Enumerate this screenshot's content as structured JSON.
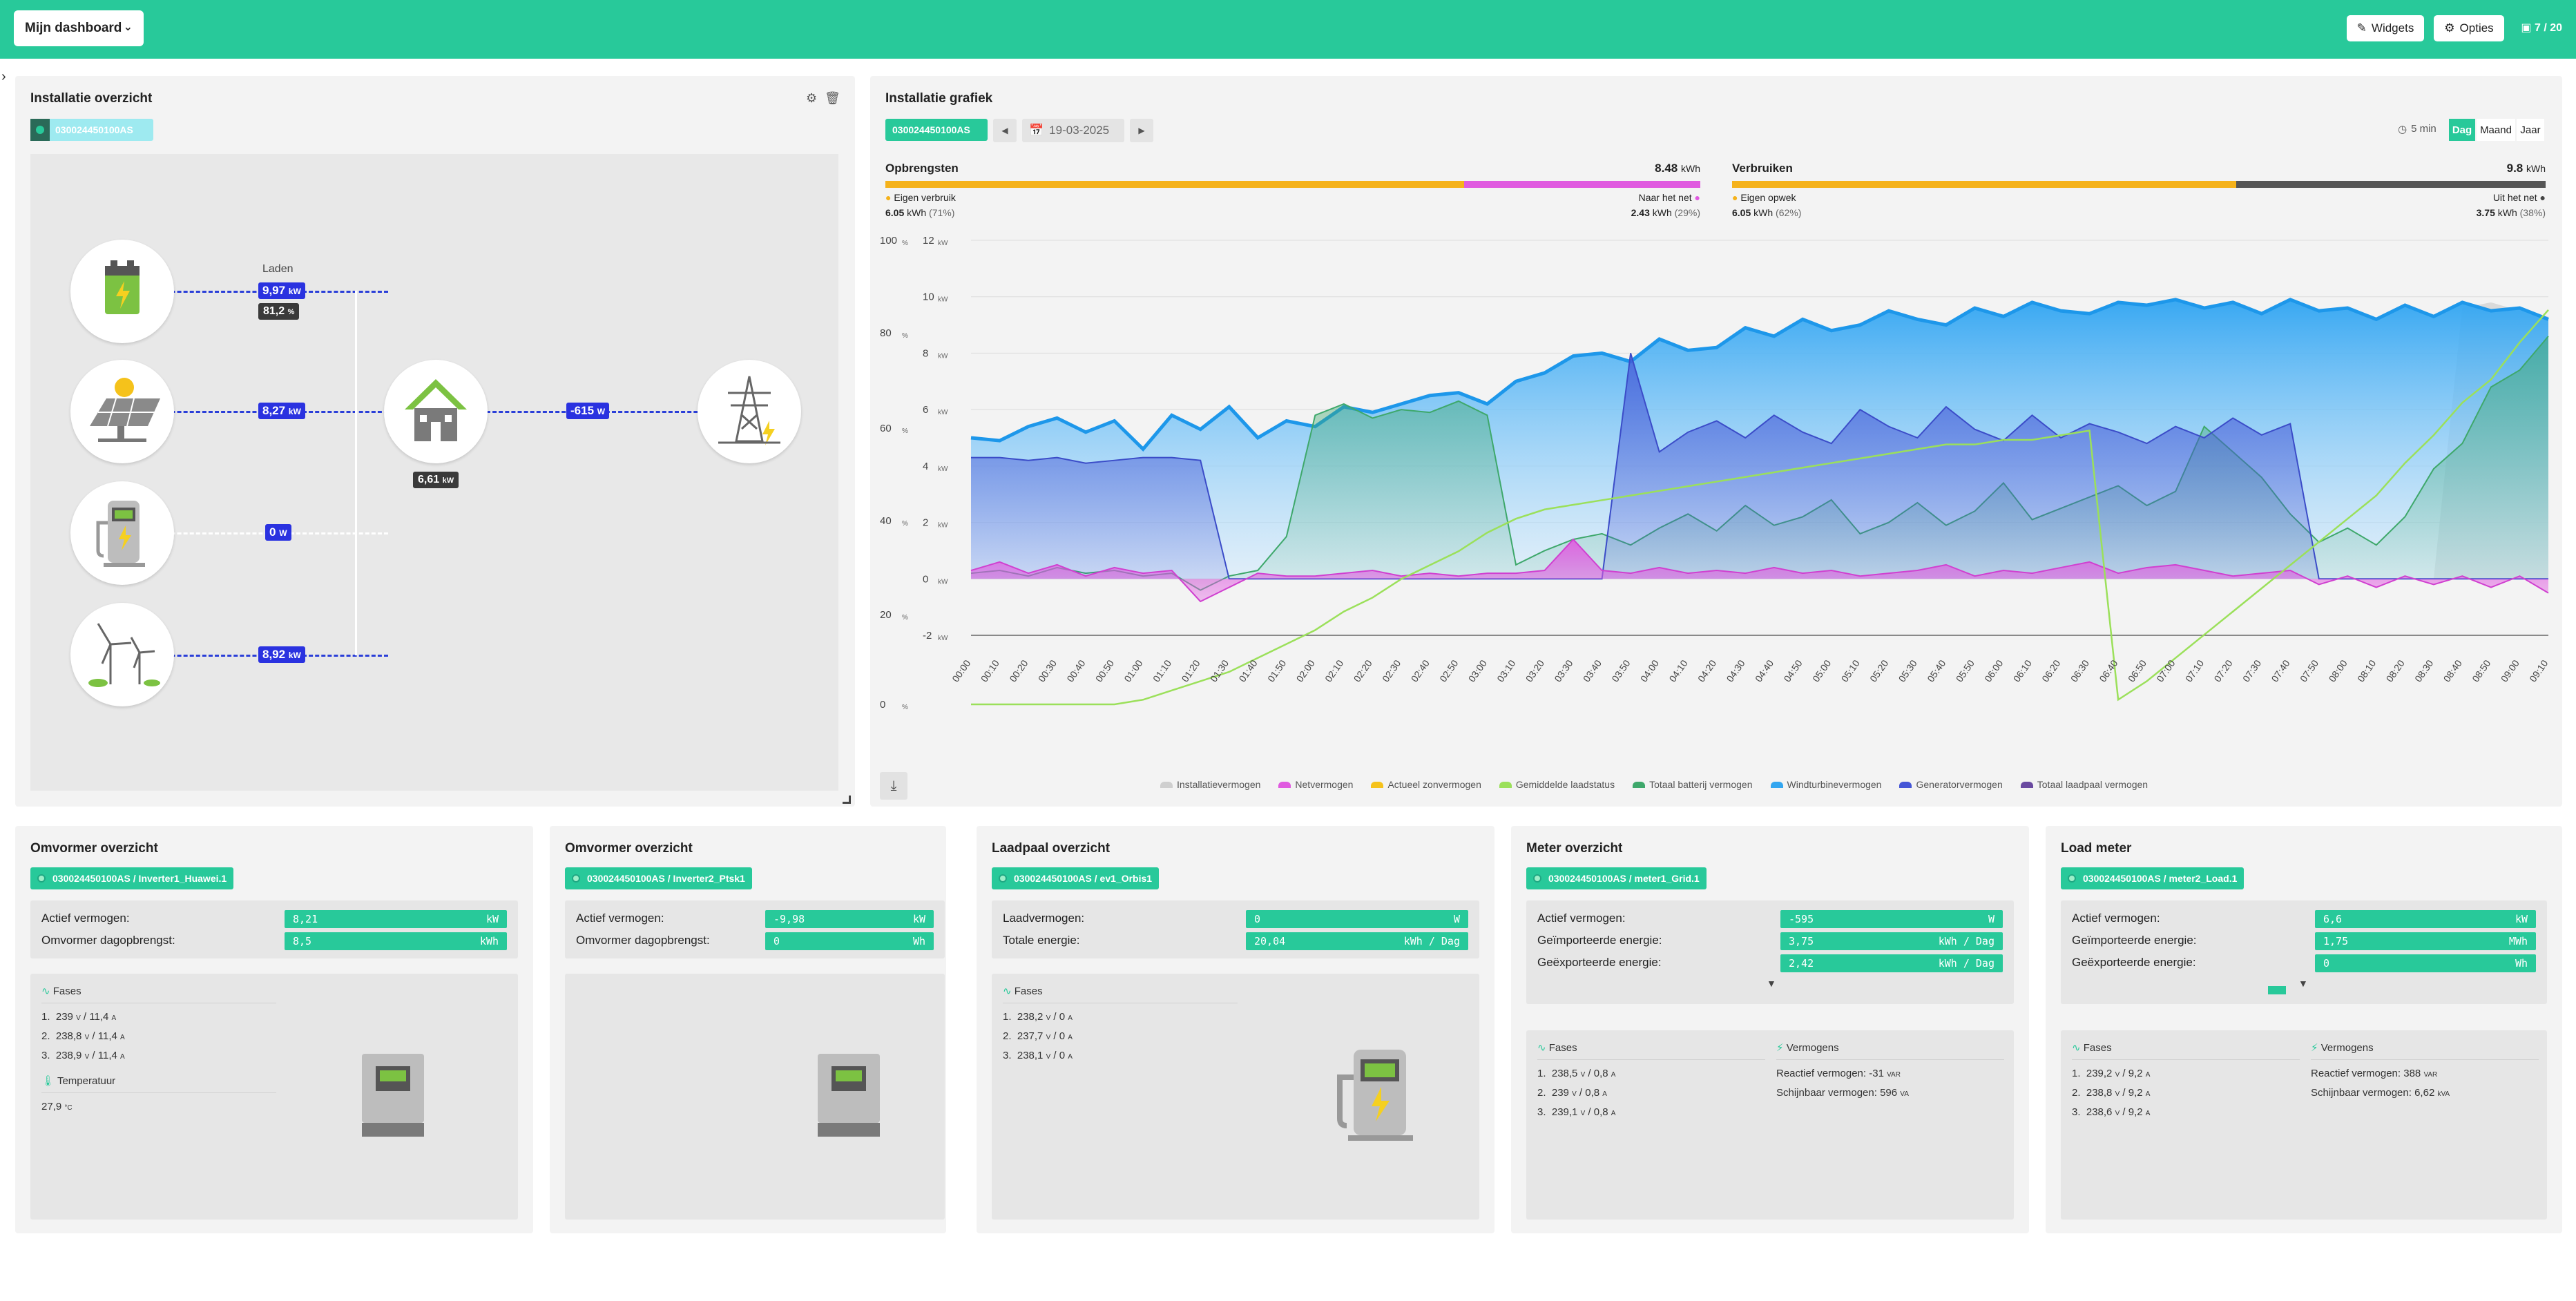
{
  "topbar": {
    "dashboard_label": "Mijn dashboard",
    "widgets_label": "Widgets",
    "options_label": "Opties",
    "count": "7 / 20"
  },
  "colors": {
    "accent": "#28c99a",
    "flow": "#2a32e0"
  },
  "installatie_overzicht": {
    "title": "Installatie overzicht",
    "device_id": "030024450100AS",
    "laden_label": "Laden",
    "battery_power": "9,97",
    "battery_power_unit": "kW",
    "battery_soc": "81,2",
    "battery_soc_unit": "%",
    "solar_power": "8,27",
    "solar_power_unit": "kW",
    "charger_power": "0",
    "charger_power_unit": "W",
    "wind_power": "8,92",
    "wind_power_unit": "kW",
    "house_power": "6,61",
    "house_power_unit": "kW",
    "grid_power": "-615",
    "grid_power_unit": "W"
  },
  "installatie_grafiek": {
    "title": "Installatie grafiek",
    "device_id": "030024450100AS",
    "date": "19-03-2025",
    "interval": "5 min",
    "periods": [
      "Dag",
      "Maand",
      "Jaar"
    ],
    "active_period": "Dag",
    "opbrengsten": {
      "label": "Opbrengsten",
      "total": "8.48",
      "total_unit": "kWh",
      "left_label": "Eigen verbruik",
      "left_value": "6.05",
      "left_unit": "kWh",
      "left_pct": "(71%)",
      "right_label": "Naar het net",
      "right_value": "2.43",
      "right_unit": "kWh",
      "right_pct": "(29%)",
      "fraction": 0.71
    },
    "verbruiken": {
      "label": "Verbruiken",
      "total": "9.8",
      "total_unit": "kWh",
      "left_label": "Eigen opwek",
      "left_value": "6.05",
      "left_unit": "kWh",
      "left_pct": "(62%)",
      "right_label": "Uit het net",
      "right_value": "3.75",
      "right_unit": "kWh",
      "right_pct": "(38%)",
      "fraction": 0.62
    }
  },
  "chart_data": {
    "type": "area",
    "y_left_unit": "%",
    "y_right_unit": "kW",
    "y_left_ticks": [
      "100",
      "80",
      "60",
      "40",
      "20",
      "0"
    ],
    "y_right_ticks": [
      "12",
      "10",
      "8",
      "6",
      "4",
      "2",
      "0",
      "-2"
    ],
    "ylim": [
      -2,
      12
    ],
    "x_ticks": [
      "00:00",
      "00:10",
      "00:20",
      "00:30",
      "00:40",
      "00:50",
      "01:00",
      "01:10",
      "01:20",
      "01:30",
      "01:40",
      "01:50",
      "02:00",
      "02:10",
      "02:20",
      "02:30",
      "02:40",
      "02:50",
      "03:00",
      "03:10",
      "03:20",
      "03:30",
      "03:40",
      "03:50",
      "04:00",
      "04:10",
      "04:20",
      "04:30",
      "04:40",
      "04:50",
      "05:00",
      "05:10",
      "05:20",
      "05:30",
      "05:40",
      "05:50",
      "06:00",
      "06:10",
      "06:20",
      "06:30",
      "06:40",
      "06:50",
      "07:00",
      "07:10",
      "07:20",
      "07:30",
      "07:40",
      "07:50",
      "08:00",
      "08:10",
      "08:20",
      "08:30",
      "08:40",
      "08:50",
      "09:00",
      "09:10"
    ],
    "legend": [
      "Installatievermogen",
      "Netvermogen",
      "Actueel zonvermogen",
      "Gemiddelde laadstatus",
      "Totaal batterij vermogen",
      "Windturbinevermogen",
      "Generatorvermogen",
      "Totaal laadpaal vermogen"
    ],
    "legend_colors": [
      "#cfcfcf",
      "#e05ae0",
      "#f5c21b",
      "#9be05a",
      "#3ea86b",
      "#33a6f0",
      "#4455d6",
      "#6a4aa0"
    ],
    "series": [
      {
        "name": "Windturbinevermogen",
        "values": [
          5.0,
          4.9,
          5.4,
          5.7,
          5.2,
          5.6,
          4.6,
          5.8,
          5.3,
          6.1,
          5.0,
          5.6,
          5.4,
          6.1,
          5.9,
          6.2,
          6.5,
          6.6,
          6.2,
          7.0,
          7.3,
          7.9,
          8.0,
          7.7,
          8.5,
          8.1,
          8.2,
          8.9,
          8.6,
          9.2,
          8.8,
          9.0,
          9.5,
          9.2,
          9.0,
          9.6,
          9.3,
          9.8,
          9.5,
          9.4,
          9.8,
          9.7,
          9.9,
          9.6,
          9.8,
          9.4,
          9.9,
          9.5,
          9.6,
          9.2,
          9.7,
          9.3,
          9.8,
          9.5,
          9.6,
          9.2
        ]
      },
      {
        "name": "Generatorvermogen",
        "values": [
          4.3,
          4.3,
          4.2,
          4.3,
          4.1,
          4.2,
          4.3,
          4.3,
          4.2,
          0,
          0,
          0,
          0,
          0,
          0,
          0,
          0,
          0,
          0,
          0,
          0,
          0,
          0,
          8.0,
          4.5,
          5.2,
          5.6,
          5.0,
          5.8,
          5.2,
          4.8,
          6.0,
          5.4,
          5.0,
          6.1,
          5.3,
          4.9,
          5.8,
          5.0,
          5.5,
          5.2,
          4.8,
          5.4,
          5.0,
          5.7,
          5.1,
          5.5,
          0,
          0,
          0,
          0,
          0,
          0,
          0,
          0,
          0
        ]
      },
      {
        "name": "Totaal batterij vermogen",
        "values": [
          0.2,
          0.3,
          0.1,
          0.4,
          0.2,
          0.3,
          0.1,
          0.2,
          -0.4,
          0.1,
          0.3,
          1.5,
          5.8,
          6.2,
          5.7,
          6.0,
          5.9,
          6.3,
          5.8,
          0.5,
          1.0,
          1.4,
          1.6,
          1.2,
          1.8,
          2.3,
          1.7,
          2.6,
          1.9,
          2.2,
          2.8,
          1.6,
          2.0,
          2.7,
          1.9,
          2.4,
          3.4,
          2.1,
          2.5,
          2.9,
          3.3,
          2.6,
          3.1,
          5.4,
          4.5,
          3.6,
          2.3,
          1.3,
          1.8,
          1.2,
          2.2,
          3.9,
          4.8,
          6.8,
          7.4,
          8.6
        ]
      },
      {
        "name": "Netvermogen",
        "values": [
          0.3,
          0.6,
          0.2,
          0.5,
          0.1,
          0.4,
          0.2,
          0.3,
          -0.8,
          -0.3,
          0.2,
          0.1,
          0.1,
          0.2,
          0.3,
          0.1,
          0.2,
          0.1,
          0.2,
          0.2,
          0.3,
          1.4,
          0.3,
          0.2,
          0.4,
          0.2,
          0.3,
          0.2,
          0.4,
          0.2,
          0.3,
          0.1,
          0.2,
          0.3,
          0.5,
          0.1,
          0.3,
          0.2,
          0.4,
          0.6,
          0.2,
          0.4,
          0.5,
          0.3,
          0.1,
          0.2,
          0.3,
          -0.2,
          0.1,
          -0.3,
          0.1,
          -0.2,
          0.1,
          -0.3,
          0.1,
          -0.5
        ]
      },
      {
        "name": "Installatievermogen",
        "values": [
          0,
          0,
          0,
          0,
          0,
          0,
          0,
          0,
          0,
          0,
          0,
          0,
          0,
          0,
          0,
          0,
          0,
          0,
          0,
          0,
          0,
          0,
          0,
          0,
          0,
          0,
          0,
          0,
          0,
          0,
          0,
          0,
          0,
          0,
          0,
          0,
          0,
          0,
          0,
          0,
          0,
          0,
          0,
          0,
          0,
          0,
          0,
          0,
          0,
          0,
          0,
          0,
          9.6,
          9.8,
          9.5,
          9.3
        ]
      },
      {
        "name": "Gemiddelde laadstatus",
        "values": [
          0,
          0,
          0,
          0,
          0,
          0,
          1,
          3,
          5,
          7,
          10,
          13,
          16,
          20,
          23,
          27,
          30,
          33,
          37,
          40,
          42,
          43,
          44,
          45,
          46,
          47,
          48,
          49,
          50,
          51,
          52,
          53,
          54,
          55,
          56,
          56,
          57,
          57,
          58,
          59,
          1,
          5,
          10,
          15,
          20,
          25,
          30,
          35,
          40,
          45,
          52,
          58,
          65,
          70,
          78,
          85
        ]
      }
    ]
  },
  "omvormer1": {
    "title": "Omvormer overzicht",
    "device_id": "030024450100AS / Inverter1_Huawei.1",
    "actief_label": "Actief vermogen:",
    "actief_value": "8,21",
    "actief_unit": "kW",
    "dag_label": "Omvormer dagopbrengst:",
    "dag_value": "8,5",
    "dag_unit": "kWh",
    "fases_label": "Fases",
    "fases": [
      {
        "n": "1.",
        "v": "239",
        "a": "11,4"
      },
      {
        "n": "2.",
        "v": "238,8",
        "a": "11,4"
      },
      {
        "n": "3.",
        "v": "238,9",
        "a": "11,4"
      }
    ],
    "temp_label": "Temperatuur",
    "temp_value": "27,9",
    "temp_unit": "°C"
  },
  "omvormer2": {
    "title": "Omvormer overzicht",
    "device_id": "030024450100AS / Inverter2_Ptsk1",
    "actief_label": "Actief vermogen:",
    "actief_value": "-9,98",
    "actief_unit": "kW",
    "dag_label": "Omvormer dagopbrengst:",
    "dag_value": "0",
    "dag_unit": "Wh"
  },
  "laadpaal": {
    "title": "Laadpaal overzicht",
    "device_id": "030024450100AS / ev1_Orbis1",
    "laad_label": "Laadvermogen:",
    "laad_value": "0",
    "laad_unit": "W",
    "totaal_label": "Totale energie:",
    "totaal_value": "20,04",
    "totaal_unit": "kWh / Dag",
    "fases_label": "Fases",
    "fases": [
      {
        "n": "1.",
        "v": "238,2",
        "a": "0"
      },
      {
        "n": "2.",
        "v": "237,7",
        "a": "0"
      },
      {
        "n": "3.",
        "v": "238,1",
        "a": "0"
      }
    ]
  },
  "meter": {
    "title": "Meter overzicht",
    "device_id": "030024450100AS / meter1_Grid.1",
    "actief_label": "Actief vermogen:",
    "actief_value": "-595",
    "actief_unit": "W",
    "imp_label": "Geïmporteerde energie:",
    "imp_value": "3,75",
    "imp_unit": "kWh / Dag",
    "exp_label": "Geëxporteerde energie:",
    "exp_value": "2,42",
    "exp_unit": "kWh / Dag",
    "fases_label": "Fases",
    "fases": [
      {
        "n": "1.",
        "v": "238,5",
        "a": "0,8"
      },
      {
        "n": "2.",
        "v": "239",
        "a": "0,8"
      },
      {
        "n": "3.",
        "v": "239,1",
        "a": "0,8"
      }
    ],
    "vermogens_label": "Vermogens",
    "reactief_label": "Reactief vermogen:",
    "reactief_value": "-31",
    "reactief_unit": "VAR",
    "schijn_label": "Schijnbaar vermogen:",
    "schijn_value": "596",
    "schijn_unit": "VA"
  },
  "loadmeter": {
    "title": "Load meter",
    "device_id": "030024450100AS / meter2_Load.1",
    "actief_label": "Actief vermogen:",
    "actief_value": "6,6",
    "actief_unit": "kW",
    "imp_label": "Geïmporteerde energie:",
    "imp_value": "1,75",
    "imp_unit": "MWh",
    "exp_label": "Geëxporteerde energie:",
    "exp_value": "0",
    "exp_unit": "Wh",
    "fases_label": "Fases",
    "fases": [
      {
        "n": "1.",
        "v": "239,2",
        "a": "9,2"
      },
      {
        "n": "2.",
        "v": "238,8",
        "a": "9,2"
      },
      {
        "n": "3.",
        "v": "238,6",
        "a": "9,2"
      }
    ],
    "vermogens_label": "Vermogens",
    "reactief_label": "Reactief vermogen:",
    "reactief_value": "388",
    "reactief_unit": "VAR",
    "schijn_label": "Schijnbaar vermogen:",
    "schijn_value": "6,62",
    "schijn_unit": "kVA"
  },
  "units": {
    "V": "V",
    "A": "A"
  }
}
